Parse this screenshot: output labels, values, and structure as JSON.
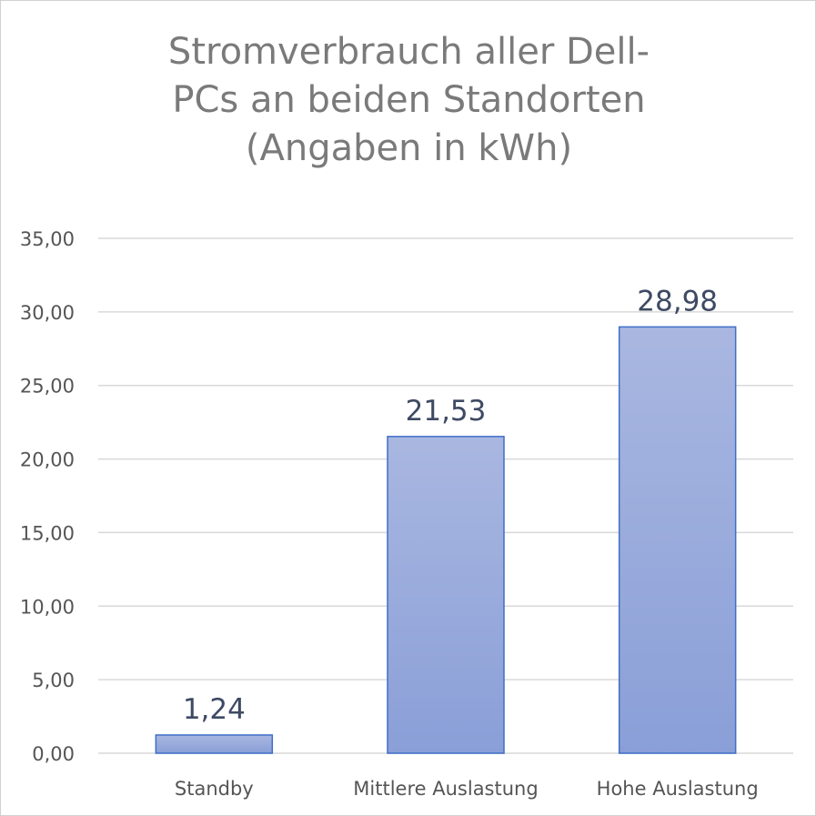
{
  "chart_data": {
    "type": "bar",
    "title": "Stromverbrauch aller Dell-PCs an beiden Standorten (Angaben in kWh)",
    "title_lines": [
      "Stromverbrauch aller Dell-",
      "PCs an beiden Standorten",
      "(Angaben in kWh)"
    ],
    "categories": [
      "Standby",
      "Mittlere Auslastung",
      "Hohe Auslastung"
    ],
    "values": [
      1.24,
      21.53,
      28.98
    ],
    "data_labels": [
      "1,24",
      "21,53",
      "28,98"
    ],
    "ylim": [
      0,
      35
    ],
    "yticks": [
      0,
      5,
      10,
      15,
      20,
      25,
      30,
      35
    ],
    "ytick_labels": [
      "0,00",
      "5,00",
      "10,00",
      "15,00",
      "20,00",
      "25,00",
      "30,00",
      "35,00"
    ],
    "xlabel": "",
    "ylabel": "",
    "grid": true,
    "legend": "none",
    "colors": {
      "bar_top": "#a9b7e0",
      "bar_bottom": "#8a9fd8",
      "bar_stroke": "#3f6fc6",
      "grid": "#d9d9d9",
      "title": "#7a7a7a",
      "data_label": "#3e4a63",
      "axis_text": "#555555"
    }
  }
}
